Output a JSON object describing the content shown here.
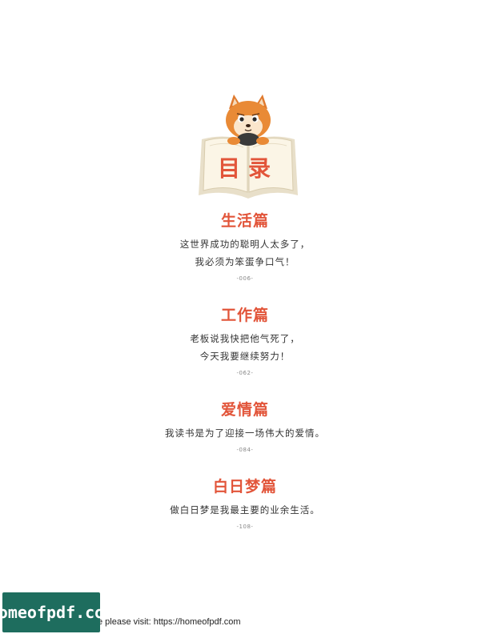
{
  "illustration": {
    "heading": "目录"
  },
  "sections": [
    {
      "title": "生活篇",
      "lines": [
        "这世界成功的聪明人太多了，",
        "我必须为笨蛋争口气！"
      ],
      "page": "-006-"
    },
    {
      "title": "工作篇",
      "lines": [
        "老板说我快把他气死了，",
        "今天我要继续努力！"
      ],
      "page": "-062-"
    },
    {
      "title": "爱情篇",
      "lines": [
        "我读书是为了迎接一场伟大的爱情。"
      ],
      "page": "-084-"
    },
    {
      "title": "白日梦篇",
      "lines": [
        "做白日梦是我最主要的业余生活。"
      ],
      "page": "-108-"
    }
  ],
  "footer": {
    "badge": "homeofpdf.com",
    "text": "e please visit: https://homeofpdf.com"
  },
  "colors": {
    "accent": "#e2553a",
    "badge": "#1e6d5e"
  }
}
